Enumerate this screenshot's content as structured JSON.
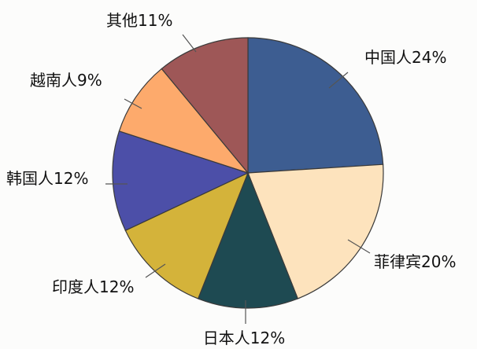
{
  "chart_data": {
    "type": "pie",
    "slices": [
      {
        "label": "中国人24%",
        "value": 24,
        "color": "#3d5d91"
      },
      {
        "label": "菲律宾20%",
        "value": 20,
        "color": "#fde3bd"
      },
      {
        "label": "日本人12%",
        "value": 12,
        "color": "#1e4a52"
      },
      {
        "label": "印度人12%",
        "value": 12,
        "color": "#d4b33a"
      },
      {
        "label": "韩国人12%",
        "value": 12,
        "color": "#4c4fa8"
      },
      {
        "label": "越南人9%",
        "value": 9,
        "color": "#fdaa6c"
      },
      {
        "label": "其他11%",
        "value": 11,
        "color": "#9e5757"
      }
    ],
    "start": "12 o'clock",
    "direction": "clockwise",
    "legend": "none"
  }
}
